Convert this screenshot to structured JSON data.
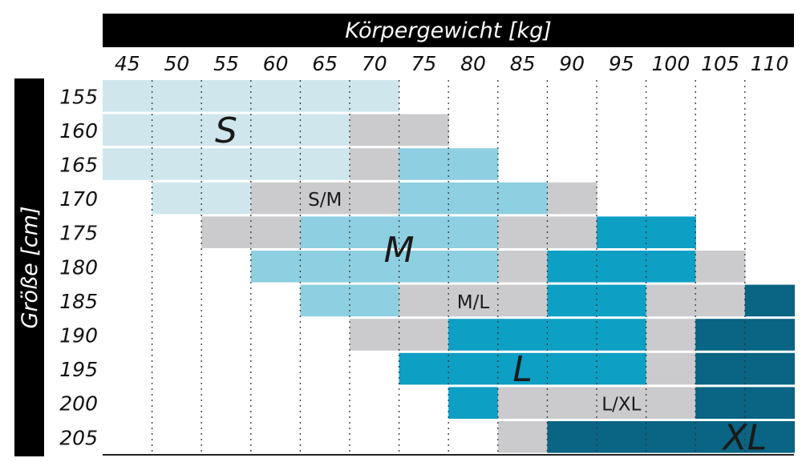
{
  "chart_data": {
    "type": "heatmap",
    "x_title": "Körpergewicht [kg]",
    "y_title": "Größe [cm]",
    "x_ticks": [
      "45",
      "50",
      "55",
      "60",
      "65",
      "70",
      "75",
      "80",
      "85",
      "90",
      "95",
      "100",
      "105",
      "110"
    ],
    "y_ticks": [
      "155",
      "160",
      "165",
      "170",
      "175",
      "180",
      "185",
      "190",
      "195",
      "200",
      "205"
    ],
    "size_labels": [
      "S",
      "S/M",
      "M",
      "M/L",
      "L",
      "L/XL",
      "XL"
    ],
    "colors": {
      "S": "#cfe7ec",
      "overlap": "#cbcbcd",
      "M": "#8ecfe1",
      "L": "#0e9fc4",
      "XL": "#0a6483",
      "header": "#000000"
    },
    "rows": [
      [
        "S",
        "S",
        "S",
        "S",
        "S",
        "S",
        "",
        "",
        "",
        "",
        "",
        "",
        "",
        ""
      ],
      [
        "S",
        "S",
        "S",
        "S",
        "S",
        "S/M",
        "S/M",
        "",
        "",
        "",
        "",
        "",
        "",
        ""
      ],
      [
        "S",
        "S",
        "S",
        "S",
        "S",
        "S/M",
        "M",
        "M",
        "",
        "",
        "",
        "",
        "",
        ""
      ],
      [
        "",
        "S",
        "S",
        "S/M",
        "S/M",
        "S/M",
        "M",
        "M",
        "M",
        "M/L",
        "",
        "",
        "",
        ""
      ],
      [
        "",
        "",
        "S/M",
        "S/M",
        "M",
        "M",
        "M",
        "M",
        "M/L",
        "M/L",
        "L",
        "L",
        "",
        ""
      ],
      [
        "",
        "",
        "",
        "M",
        "M",
        "M",
        "M",
        "M",
        "M/L",
        "L",
        "L",
        "L",
        "L/XL",
        ""
      ],
      [
        "",
        "",
        "",
        "",
        "M",
        "M",
        "M/L",
        "M/L",
        "M/L",
        "L",
        "L",
        "L/XL",
        "L/XL",
        "XL"
      ],
      [
        "",
        "",
        "",
        "",
        "",
        "M/L",
        "M/L",
        "L",
        "L",
        "L",
        "L",
        "L/XL",
        "XL",
        "XL"
      ],
      [
        "",
        "",
        "",
        "",
        "",
        "",
        "L",
        "L",
        "L",
        "L",
        "L",
        "L/XL",
        "XL",
        "XL"
      ],
      [
        "",
        "",
        "",
        "",
        "",
        "",
        "",
        "L",
        "L/XL",
        "L/XL",
        "L/XL",
        "L/XL",
        "XL",
        "XL"
      ],
      [
        "",
        "",
        "",
        "",
        "",
        "",
        "",
        "",
        "L/XL",
        "XL",
        "XL",
        "XL",
        "XL",
        "XL"
      ]
    ],
    "region_labels": [
      {
        "text": "S",
        "col": 2.5,
        "row": 1
      },
      {
        "text": "S/M",
        "col": 4.5,
        "row": 3
      },
      {
        "text": "M",
        "col": 6,
        "row": 4.5
      },
      {
        "text": "M/L",
        "col": 7.5,
        "row": 6
      },
      {
        "text": "L",
        "col": 8.5,
        "row": 8
      },
      {
        "text": "L/XL",
        "col": 10.5,
        "row": 9
      },
      {
        "text": "XL",
        "col": 13,
        "row": 10
      }
    ],
    "grid": true
  }
}
